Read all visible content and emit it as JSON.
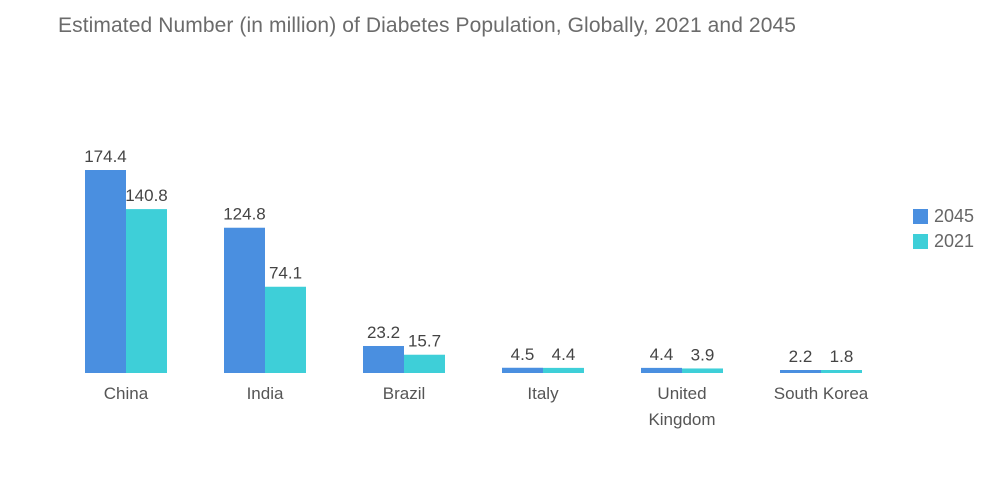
{
  "chart_data": {
    "type": "bar",
    "title": "Estimated Number (in million) of Diabetes Population, Globally, 2021 and 2045",
    "xlabel": "",
    "ylabel": "",
    "ylim": [
      0,
      180
    ],
    "grid": false,
    "legend_position": "right",
    "categories": [
      [
        "China"
      ],
      [
        "India"
      ],
      [
        "Brazil"
      ],
      [
        "Italy"
      ],
      [
        "United",
        "Kingdom"
      ],
      [
        "South Korea"
      ]
    ],
    "series": [
      {
        "name": "2045",
        "color": "#4a8fe0",
        "values": [
          174.4,
          124.8,
          23.2,
          4.5,
          4.4,
          2.2
        ],
        "labels": [
          "174.4",
          "124.8",
          "23.2",
          "4.5",
          "4.4",
          "2.2"
        ]
      },
      {
        "name": "2021",
        "color": "#3ecfd8",
        "values": [
          140.8,
          74.1,
          15.7,
          4.4,
          3.9,
          1.8
        ],
        "labels": [
          "140.8",
          "74.1",
          "15.7",
          "4.4",
          "3.9",
          "1.8"
        ]
      }
    ]
  }
}
